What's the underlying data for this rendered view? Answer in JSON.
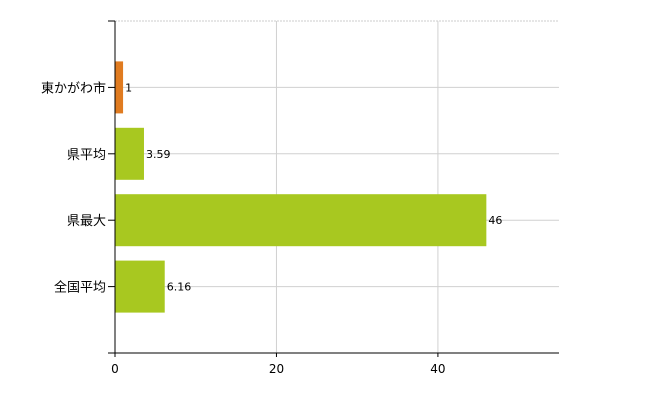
{
  "chart_data": {
    "type": "bar",
    "orientation": "horizontal",
    "categories": [
      "東かがわ市",
      "県平均",
      "県最大",
      "全国平均"
    ],
    "values": [
      1,
      3.59,
      46,
      6.16
    ],
    "data_labels": [
      "1",
      "3.59",
      "46",
      "6.16"
    ],
    "bar_colors": [
      "#e07b20",
      "#a8c820",
      "#a8c820",
      "#a8c820"
    ],
    "xlim": [
      0,
      55
    ],
    "xticks": [
      0,
      20,
      40
    ],
    "xtick_labels": [
      "0",
      "20",
      "40"
    ],
    "grid": true,
    "title": "",
    "xlabel": "",
    "ylabel": ""
  }
}
